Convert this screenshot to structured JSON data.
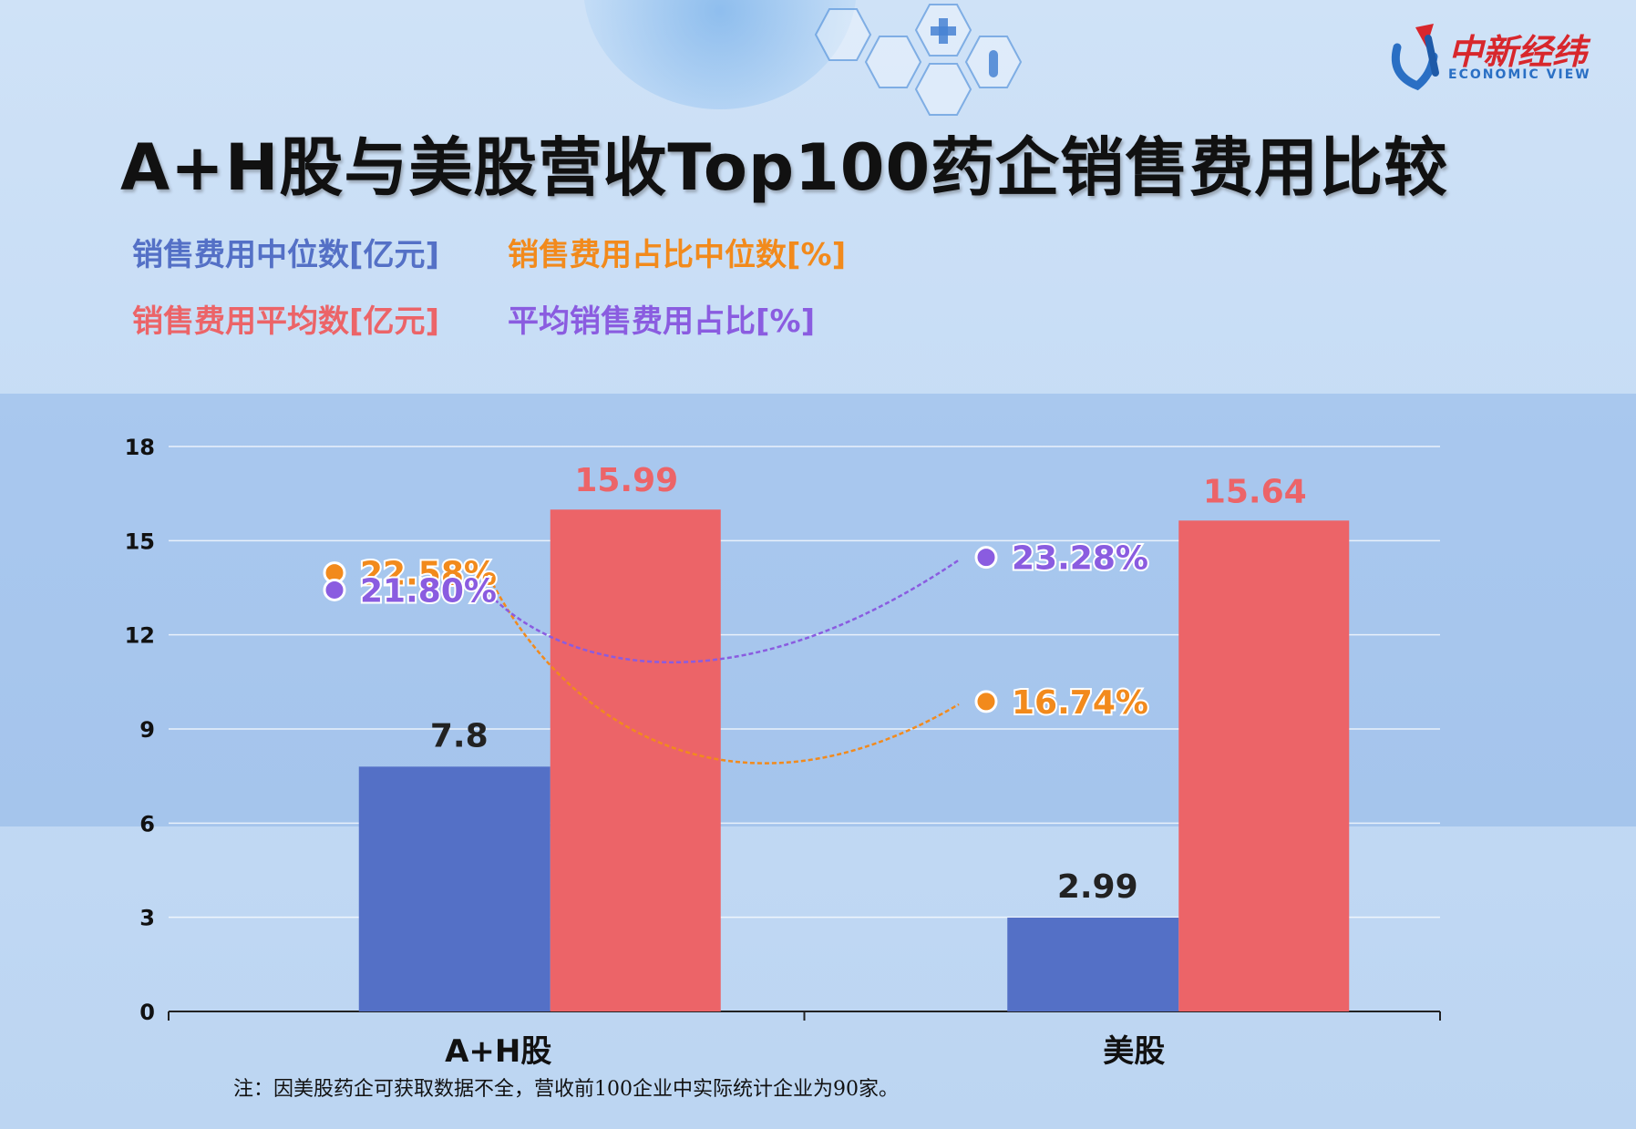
{
  "header": {
    "title": "A+H股与美股营收Top100药企销售费用比较",
    "logo_text": "中新经纬",
    "logo_subtext": "ECONOMIC VIEW"
  },
  "legend": [
    {
      "label": "销售费用中位数[亿元]",
      "color": "#5470c6"
    },
    {
      "label": "销售费用占比中位数[%]",
      "color": "#f28a1c"
    },
    {
      "label": "销售费用平均数[亿元]",
      "color": "#ec6468"
    },
    {
      "label": "平均销售费用占比[%]",
      "color": "#8a5ce0"
    }
  ],
  "note": "注：因美股药企可获取数据不全，营收前100企业中实际统计企业为90家。",
  "chart_data": {
    "type": "bar",
    "title": "A+H股与美股营收Top100药企销售费用比较",
    "categories": [
      "A+H股",
      "美股"
    ],
    "ylim": [
      0,
      18
    ],
    "yticks": [
      "0",
      "3",
      "6",
      "9",
      "12",
      "15",
      "18"
    ],
    "grid": true,
    "series": [
      {
        "name": "销售费用中位数[亿元]",
        "color": "#5470c6",
        "values": [
          7.8,
          2.99
        ],
        "labels": [
          "7.8",
          "2.99"
        ]
      },
      {
        "name": "销售费用平均数[亿元]",
        "color": "#ec6468",
        "values": [
          15.99,
          15.64
        ],
        "labels": [
          "15.99",
          "15.64"
        ]
      }
    ],
    "percent_series": [
      {
        "name": "销售费用占比中位数[%]",
        "color": "#f28a1c",
        "values": [
          22.58,
          16.74
        ],
        "labels": [
          "22.58%",
          "16.74%"
        ]
      },
      {
        "name": "平均销售费用占比[%]",
        "color": "#8a5ce0",
        "values": [
          21.8,
          23.28
        ],
        "labels": [
          "21.80%",
          "23.28%"
        ]
      }
    ]
  }
}
